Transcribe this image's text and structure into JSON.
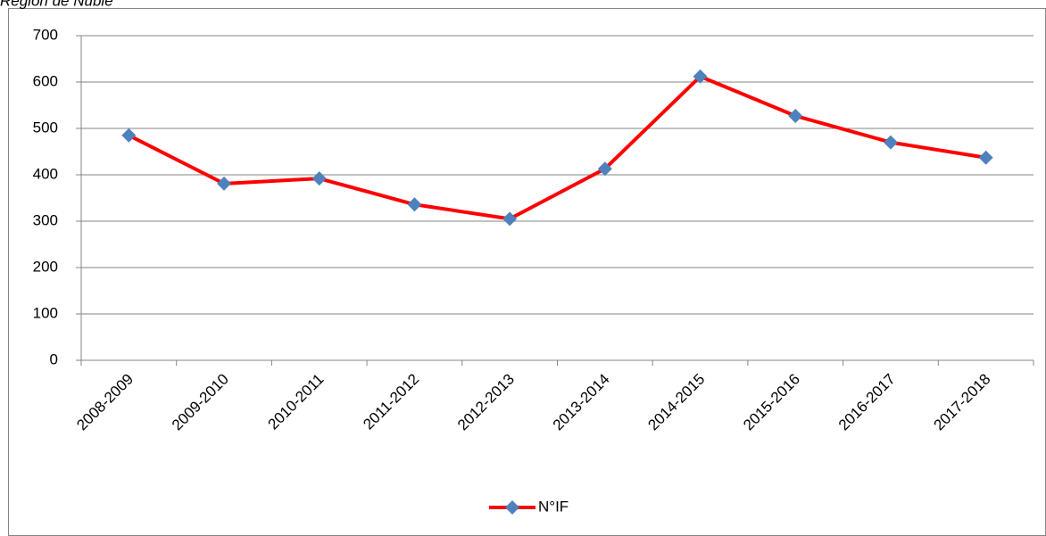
{
  "chart_data": {
    "type": "line",
    "title": "Región de Ñuble",
    "categories": [
      "2008-2009",
      "2009-2010",
      "2010-2011",
      "2011-2012",
      "2012-2013",
      "2013-2014",
      "2014-2015",
      "2015-2016",
      "2016-2017",
      "2017-2018"
    ],
    "series": [
      {
        "name": "N°IF",
        "color": "#ff0000",
        "marker_color": "#4f81bd",
        "values": [
          485,
          381,
          392,
          336,
          305,
          413,
          612,
          527,
          470,
          437
        ]
      }
    ],
    "ylim": [
      0,
      700
    ],
    "yticks": [
      0,
      100,
      200,
      300,
      400,
      500,
      600,
      700
    ],
    "grid": true,
    "legend": "bottom"
  }
}
